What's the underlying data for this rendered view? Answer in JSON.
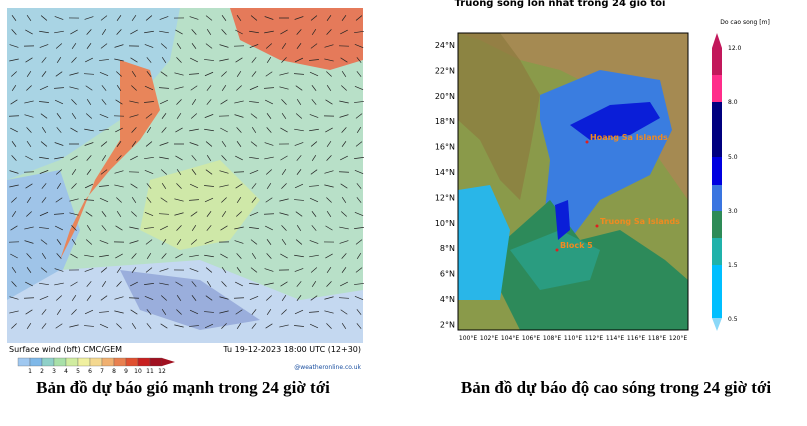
{
  "wind_map": {
    "footer_left": "Surface wind (bft)   CMC/GEM",
    "footer_right": "Tu 19-12-2023 18:00 UTC (12+30)",
    "credit": "@weatheronline.co.uk",
    "scale_labels": [
      "1",
      "2",
      "3",
      "4",
      "5",
      "6",
      "7",
      "8",
      "9",
      "10",
      "11",
      "12"
    ],
    "caption": "Bản đồ dự báo gió mạnh trong 24 giờ tới"
  },
  "wave_map": {
    "title": "Truong song lon nhat trong 24 gio toi",
    "legend_title": "Do cao song [m]",
    "legend_labels": [
      "12.0",
      "8.0",
      "5.0",
      "3.0",
      "1.5",
      "0.5"
    ],
    "lat_labels": [
      "24°N",
      "22°N",
      "20°N",
      "18°N",
      "16°N",
      "14°N",
      "12°N",
      "10°N",
      "8°N",
      "6°N",
      "4°N",
      "2°N"
    ],
    "lon_labels": [
      "100°E",
      "102°E",
      "104°E",
      "106°E",
      "108°E",
      "110°E",
      "112°E",
      "114°E",
      "116°E",
      "118°E",
      "120°E"
    ],
    "places": [
      "Hoang Sa Islands",
      "Truong Sa Islands",
      "Block 5"
    ],
    "caption": "Bản đồ dự báo độ cao sóng trong 24 giờ tới"
  }
}
